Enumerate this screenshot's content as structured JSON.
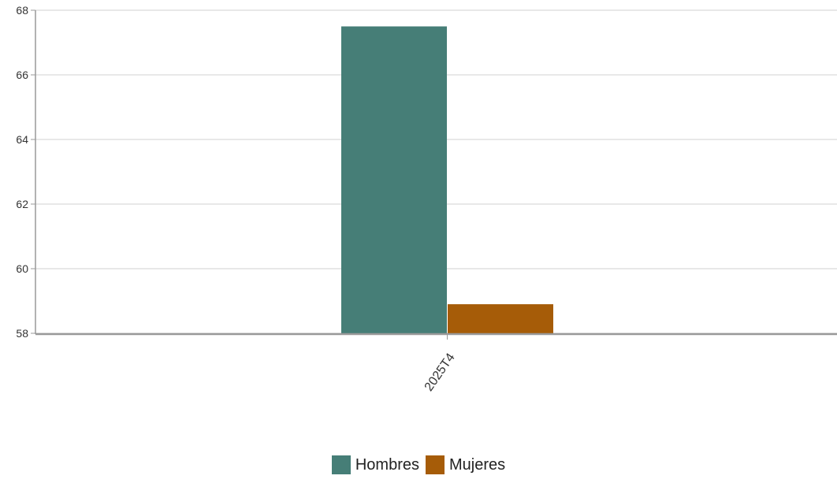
{
  "chart_data": {
    "type": "bar",
    "categories": [
      "2025T4"
    ],
    "series": [
      {
        "name": "Hombres",
        "values": [
          67.5
        ],
        "color": "#467e77"
      },
      {
        "name": "Mujeres",
        "values": [
          58.9
        ],
        "color": "#a65c08"
      }
    ],
    "ylim": [
      58,
      68
    ],
    "yticks": [
      "58",
      "60",
      "62",
      "64",
      "66",
      "68"
    ],
    "grid": true,
    "legend_position": "bottom-center"
  }
}
